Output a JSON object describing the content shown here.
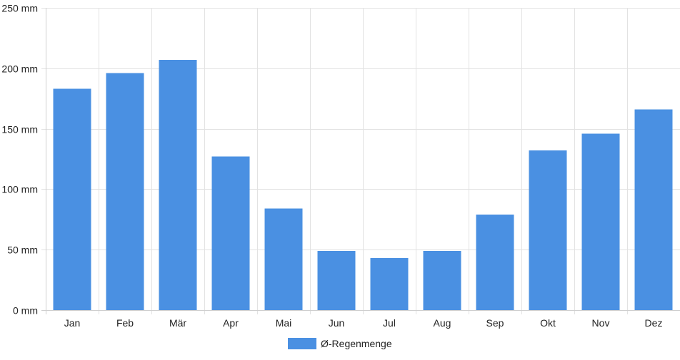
{
  "chart_data": {
    "type": "bar",
    "title": "",
    "xlabel": "",
    "ylabel": "",
    "categories": [
      "Jan",
      "Feb",
      "Mär",
      "Apr",
      "Mai",
      "Jun",
      "Jul",
      "Aug",
      "Sep",
      "Okt",
      "Nov",
      "Dez"
    ],
    "series": [
      {
        "name": "Ø-Regenmenge",
        "color": "#4a90e2",
        "values": [
          183,
          196,
          207,
          127,
          84,
          49,
          43,
          49,
          79,
          132,
          146,
          166
        ]
      }
    ],
    "ylim": [
      0,
      250
    ],
    "yticks": [
      0,
      50,
      100,
      150,
      200,
      250
    ],
    "ytick_unit": "mm",
    "grid": true,
    "legend_position": "bottom-center"
  }
}
